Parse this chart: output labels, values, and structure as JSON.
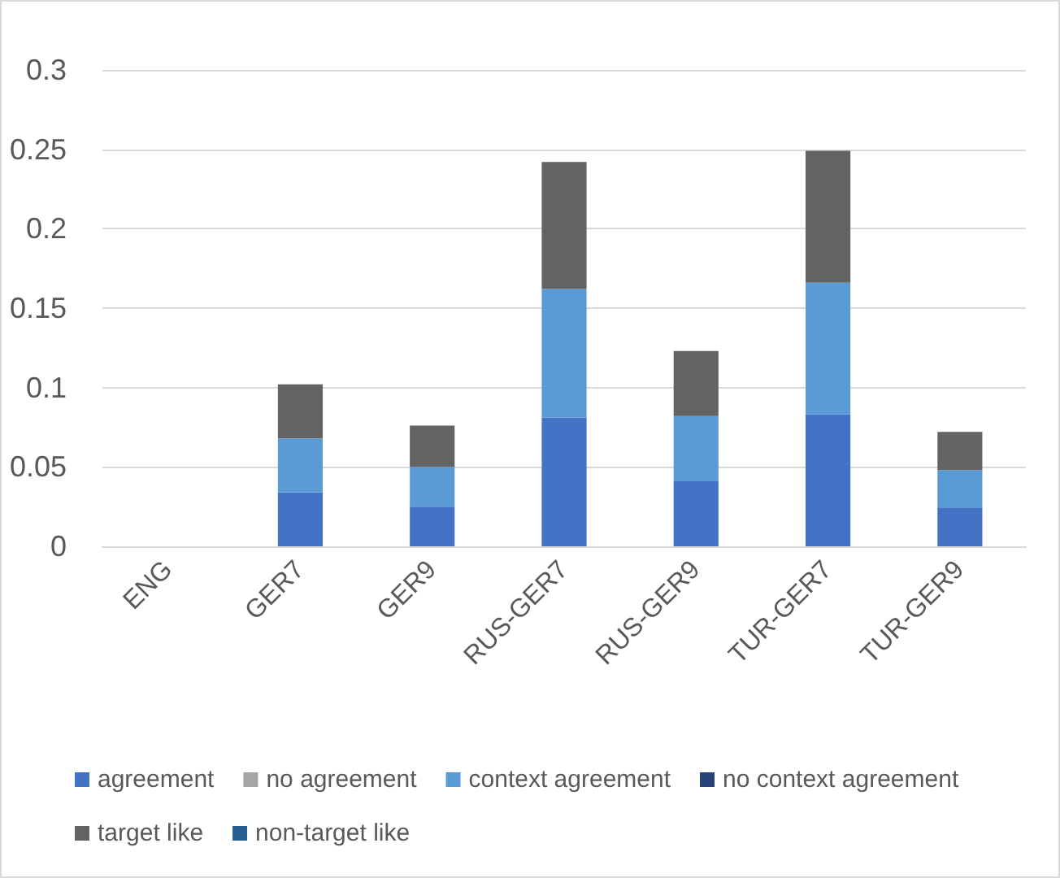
{
  "chart_data": {
    "type": "bar",
    "stacked": true,
    "categories": [
      "ENG",
      "GER7",
      "GER9",
      "RUS-GER7",
      "RUS-GER9",
      "TUR-GER7",
      "TUR-GER9"
    ],
    "series": [
      {
        "name": "agreement",
        "color": "#4472c4",
        "values": [
          0,
          0.034,
          0.025,
          0.081,
          0.041,
          0.083,
          0.024
        ]
      },
      {
        "name": "no agreement",
        "color": "#a5a5a5",
        "values": [
          0,
          0,
          0,
          0,
          0,
          0,
          0
        ]
      },
      {
        "name": "context agreement",
        "color": "#5b9bd5",
        "values": [
          0,
          0.034,
          0.025,
          0.081,
          0.041,
          0.083,
          0.024
        ]
      },
      {
        "name": "no context agreement",
        "color": "#264478",
        "values": [
          0,
          0,
          0,
          0,
          0,
          0,
          0
        ]
      },
      {
        "name": "target like",
        "color": "#636363",
        "values": [
          0,
          0.034,
          0.026,
          0.08,
          0.041,
          0.083,
          0.024
        ]
      },
      {
        "name": "non-target like",
        "color": "#255e91",
        "values": [
          0,
          0,
          0,
          0,
          0,
          0,
          0
        ]
      }
    ],
    "ylim": [
      0,
      0.3
    ],
    "yticks": [
      0,
      0.05,
      0.1,
      0.15,
      0.2,
      0.25,
      0.3
    ],
    "grid": "y",
    "legend": "bottom"
  }
}
